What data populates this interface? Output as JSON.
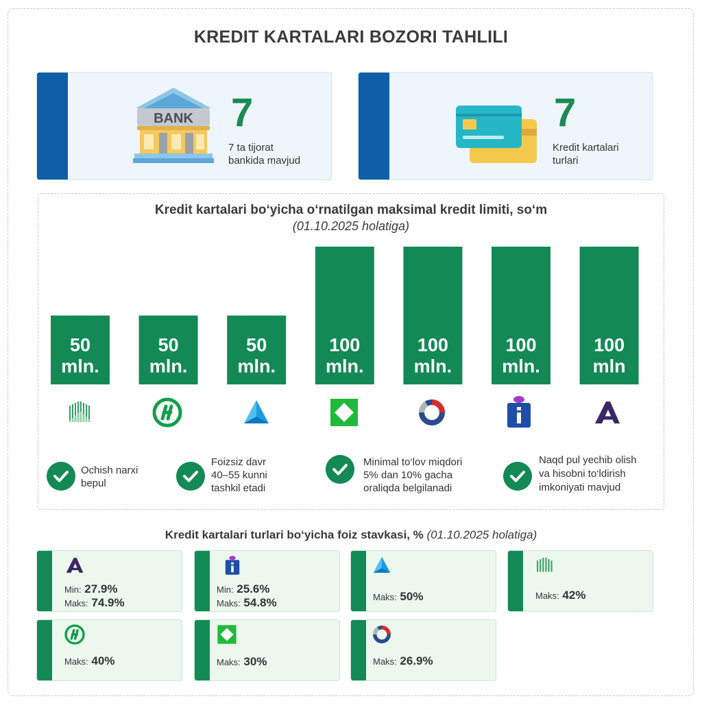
{
  "title": "KREDIT KARTALARI BOZORI TAHLILI",
  "stats": {
    "banks": {
      "number": "7",
      "caption_l1": "7 ta tijorat",
      "caption_l2": "bankida mavjud",
      "icon": "bank-icon",
      "icon_text": "BANK"
    },
    "types": {
      "number": "7",
      "caption_l1": "Kredit kartalari",
      "caption_l2": "turlari",
      "icon": "credit-card-icon"
    }
  },
  "chart_data": {
    "type": "bar",
    "title": "Kredit kartalari bo‘yicha o‘rnatilgan maksimal kredit limiti, so‘m",
    "subtitle": "(01.10.2025 holatiga)",
    "categories": [
      "bank-1",
      "bank-2",
      "bank-3",
      "bank-4",
      "bank-5",
      "bank-6",
      "bank-7"
    ],
    "values": [
      50,
      50,
      50,
      100,
      100,
      100,
      100
    ],
    "labels": [
      "50 mln.",
      "50 mln.",
      "50 mln.",
      "100 mln.",
      "100 mln.",
      "100 mln.",
      "100 mln"
    ],
    "unit": "mln.",
    "ylim": [
      0,
      100
    ],
    "bar_color": "#138a55",
    "grid": false,
    "legend": "none"
  },
  "bank_logos": [
    {
      "icon": "green-stripes-logo",
      "color": "#2f9e62"
    },
    {
      "icon": "hamkorbank-h-logo",
      "color": "#12a04a"
    },
    {
      "icon": "blue-triangle-logo",
      "color": "#1a9de0"
    },
    {
      "icon": "green-diamond-logo",
      "color": "#1fba3a"
    },
    {
      "icon": "ring-logo",
      "color": "#2a4b8c"
    },
    {
      "icon": "i-letter-logo",
      "color": "#1f4ea8"
    },
    {
      "icon": "purple-a-logo",
      "color": "#3a2766"
    }
  ],
  "features": [
    {
      "l1": "Ochish narxi",
      "l2": "bepul",
      "l3": ""
    },
    {
      "l1": "Foizsiz davr",
      "l2": "40–55 kunni",
      "l3": "tashkil etadi"
    },
    {
      "l1": "Minimal to‘lov miqdori",
      "l2": "5% dan 10% gacha",
      "l3": "oraliqda belgilanadi"
    },
    {
      "l1": "Naqd pul yechib olish",
      "l2": "va hisobni to‘ldirish",
      "l3": "imkoniyati mavjud"
    }
  ],
  "rates": {
    "title_bold": "Kredit kartalari turlari bo‘yicha foiz stavkasi, %",
    "title_italic": "(01.10.2025 holatiga)",
    "min_label": "Min:",
    "max_label": "Maks:",
    "cards": [
      {
        "logo": "purple-a-logo",
        "min": "27.9%",
        "max": "74.9%"
      },
      {
        "logo": "i-letter-logo",
        "min": "25.6%",
        "max": "54.8%"
      },
      {
        "logo": "blue-triangle-logo",
        "min": "",
        "max": "50%"
      },
      {
        "logo": "green-stripes-logo",
        "min": "",
        "max": "42%"
      },
      {
        "logo": "hamkorbank-h-logo",
        "min": "",
        "max": "40%"
      },
      {
        "logo": "green-diamond-logo",
        "min": "",
        "max": "30%"
      },
      {
        "logo": "ring-logo",
        "min": "",
        "max": "26.9%"
      }
    ]
  }
}
